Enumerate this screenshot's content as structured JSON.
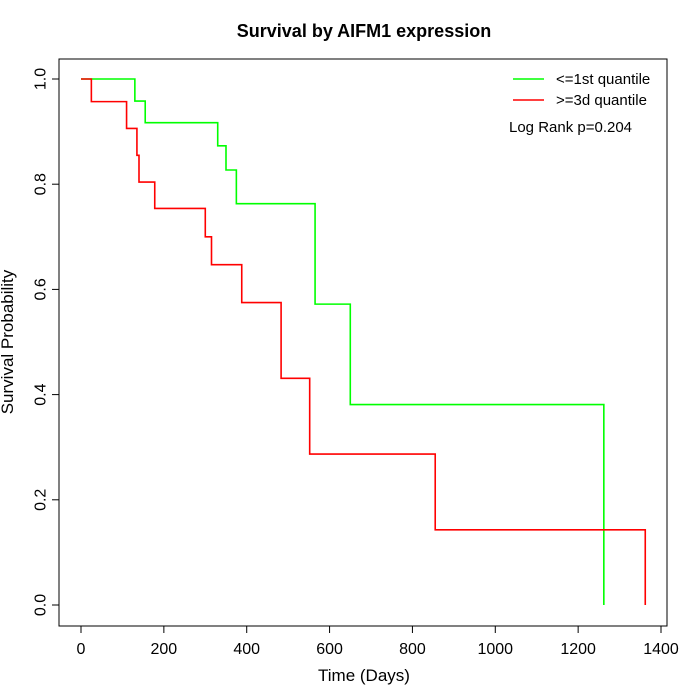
{
  "chart_data": {
    "type": "line",
    "title": "Survival by AIFM1 expression",
    "xlabel": "Time (Days)",
    "ylabel": "Survival Probability",
    "xlim": [
      0,
      1400
    ],
    "ylim": [
      0,
      1
    ],
    "xticks": [
      0,
      200,
      400,
      600,
      800,
      1000,
      1200,
      1400
    ],
    "yticks": [
      0.0,
      0.2,
      0.4,
      0.6,
      0.8,
      1.0
    ],
    "xtick_labels": [
      "0",
      "200",
      "400",
      "600",
      "800",
      "1000",
      "1200",
      "1400"
    ],
    "ytick_labels": [
      "0.0",
      "0.2",
      "0.4",
      "0.6",
      "0.8",
      "1.0"
    ],
    "grid": false,
    "legend_position": "top-right",
    "annotation": "Log Rank p=0.204",
    "series": [
      {
        "name": "<=1st quantile",
        "color": "#00ff00",
        "x": [
          0,
          130,
          155,
          330,
          350,
          375,
          565,
          650,
          1262
        ],
        "y": [
          1.0,
          0.958,
          0.917,
          0.873,
          0.827,
          0.763,
          0.572,
          0.381,
          0.0
        ]
      },
      {
        "name": ">=3d quantile",
        "color": "#ff0000",
        "x": [
          0,
          25,
          110,
          135,
          140,
          178,
          300,
          315,
          388,
          483,
          552,
          855,
          1362
        ],
        "y": [
          1.0,
          0.957,
          0.906,
          0.855,
          0.804,
          0.754,
          0.7,
          0.647,
          0.575,
          0.431,
          0.287,
          0.143,
          0.0
        ]
      }
    ]
  }
}
